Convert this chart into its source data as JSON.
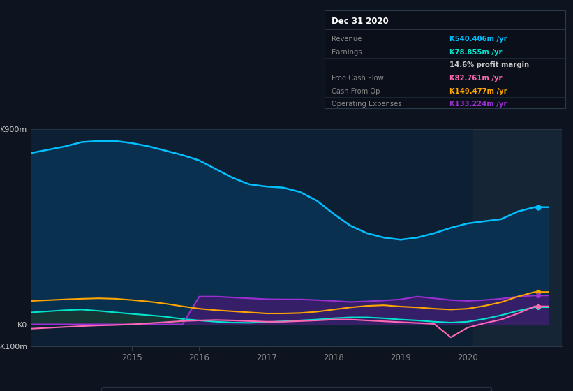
{
  "bg_color": "#0d1420",
  "plot_bg_color": "#0d1f33",
  "header_bg_color": "#0a1020",
  "ylim": [
    -100,
    900
  ],
  "xlim_start": 2013.5,
  "xlim_end": 2021.4,
  "x_ticks": [
    2015,
    2016,
    2017,
    2018,
    2019,
    2020
  ],
  "highlight_start": 2020.08,
  "highlight_end": 2021.4,
  "highlight_color": "#162535",
  "revenue_color": "#00bfff",
  "earnings_color": "#00e5cc",
  "fcf_color": "#ff69b4",
  "cashfromop_color": "#ffa500",
  "opex_color": "#9b30d0",
  "revenue_fill_color": "#0a3050",
  "earnings_fill_color": "#183830",
  "opex_fill_color": "#3d1d6e",
  "legend_items": [
    "Revenue",
    "Earnings",
    "Free Cash Flow",
    "Cash From Op",
    "Operating Expenses"
  ],
  "legend_colors": [
    "#00bfff",
    "#00e5cc",
    "#ff69b4",
    "#ffa500",
    "#9b30d0"
  ],
  "tooltip_title": "Dec 31 2020",
  "tooltip_bg": "#0a0f1a",
  "tooltip_border": "#2a3a4a",
  "revenue_x": [
    2013.5,
    2014.0,
    2014.25,
    2014.5,
    2014.75,
    2015.0,
    2015.25,
    2015.5,
    2015.75,
    2016.0,
    2016.25,
    2016.5,
    2016.75,
    2017.0,
    2017.25,
    2017.5,
    2017.75,
    2018.0,
    2018.25,
    2018.5,
    2018.75,
    2019.0,
    2019.25,
    2019.5,
    2019.75,
    2020.0,
    2020.25,
    2020.5,
    2020.75,
    2021.0,
    2021.2
  ],
  "revenue_y": [
    790,
    820,
    840,
    845,
    845,
    835,
    820,
    800,
    780,
    755,
    715,
    675,
    645,
    635,
    630,
    610,
    570,
    510,
    455,
    420,
    400,
    390,
    400,
    420,
    445,
    465,
    475,
    485,
    520,
    540,
    540
  ],
  "earnings_x": [
    2013.5,
    2014.0,
    2014.25,
    2014.5,
    2014.75,
    2015.0,
    2015.25,
    2015.5,
    2015.75,
    2016.0,
    2016.25,
    2016.5,
    2016.75,
    2017.0,
    2017.25,
    2017.5,
    2017.75,
    2018.0,
    2018.25,
    2018.5,
    2018.75,
    2019.0,
    2019.25,
    2019.5,
    2019.75,
    2020.0,
    2020.25,
    2020.5,
    2020.75,
    2021.0,
    2021.2
  ],
  "earnings_y": [
    55,
    65,
    68,
    62,
    55,
    48,
    42,
    35,
    25,
    18,
    12,
    8,
    7,
    10,
    14,
    18,
    22,
    28,
    32,
    32,
    28,
    22,
    18,
    12,
    8,
    12,
    25,
    42,
    62,
    79,
    79
  ],
  "fcf_x": [
    2013.5,
    2014.0,
    2014.25,
    2014.5,
    2014.75,
    2015.0,
    2015.25,
    2015.5,
    2015.75,
    2016.0,
    2016.25,
    2016.5,
    2016.75,
    2017.0,
    2017.25,
    2017.5,
    2017.75,
    2018.0,
    2018.25,
    2018.5,
    2018.75,
    2019.0,
    2019.25,
    2019.5,
    2019.75,
    2020.0,
    2020.25,
    2020.5,
    2020.75,
    2021.0,
    2021.2
  ],
  "fcf_y": [
    -20,
    -12,
    -8,
    -5,
    -3,
    0,
    5,
    10,
    15,
    18,
    20,
    18,
    15,
    12,
    12,
    15,
    18,
    22,
    22,
    18,
    14,
    10,
    6,
    2,
    -60,
    -15,
    5,
    22,
    50,
    83,
    83
  ],
  "cashfromop_x": [
    2013.5,
    2014.0,
    2014.25,
    2014.5,
    2014.75,
    2015.0,
    2015.25,
    2015.5,
    2015.75,
    2016.0,
    2016.25,
    2016.5,
    2016.75,
    2017.0,
    2017.25,
    2017.5,
    2017.75,
    2018.0,
    2018.25,
    2018.5,
    2018.75,
    2019.0,
    2019.25,
    2019.5,
    2019.75,
    2020.0,
    2020.25,
    2020.5,
    2020.75,
    2021.0,
    2021.2
  ],
  "cashfromop_y": [
    108,
    115,
    118,
    120,
    118,
    112,
    105,
    95,
    83,
    72,
    65,
    60,
    55,
    50,
    50,
    52,
    58,
    68,
    78,
    85,
    88,
    82,
    78,
    72,
    68,
    72,
    85,
    102,
    128,
    149,
    149
  ],
  "opex_x": [
    2013.5,
    2014.0,
    2014.25,
    2014.5,
    2014.75,
    2015.0,
    2015.25,
    2015.5,
    2015.75,
    2016.0,
    2016.25,
    2016.5,
    2016.75,
    2017.0,
    2017.25,
    2017.5,
    2017.75,
    2018.0,
    2018.25,
    2018.5,
    2018.75,
    2019.0,
    2019.25,
    2019.5,
    2019.75,
    2020.0,
    2020.25,
    2020.5,
    2020.75,
    2021.0,
    2021.2
  ],
  "opex_y": [
    0,
    0,
    0,
    0,
    0,
    0,
    0,
    0,
    0,
    128,
    128,
    124,
    120,
    116,
    115,
    115,
    112,
    108,
    103,
    106,
    110,
    115,
    128,
    120,
    112,
    108,
    112,
    118,
    128,
    133,
    133
  ]
}
